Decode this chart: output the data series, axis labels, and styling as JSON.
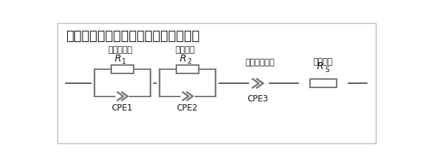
{
  "title": "酸化物系固体電解質の等価回路モデル",
  "label_bulk": "（バルク）",
  "label_grain": "（粒界）",
  "label_electrode_if": "（電極界面）",
  "label_electrode": "（電極）",
  "label_r1": "R",
  "label_r1_sub": "1",
  "label_r2": "R",
  "label_r2_sub": "2",
  "label_rs": "R",
  "label_rs_sub": "S",
  "label_cpe1": "CPE1",
  "label_cpe2": "CPE2",
  "label_cpe3": "CPE3",
  "background_color": "#ffffff",
  "border_color": "#aaaaaa",
  "line_color": "#555555",
  "component_color": "#777777",
  "text_color": "#111111",
  "title_fontsize": 13.5,
  "label_fontsize": 8.5,
  "r_fontsize": 10,
  "sub_fontsize": 7
}
